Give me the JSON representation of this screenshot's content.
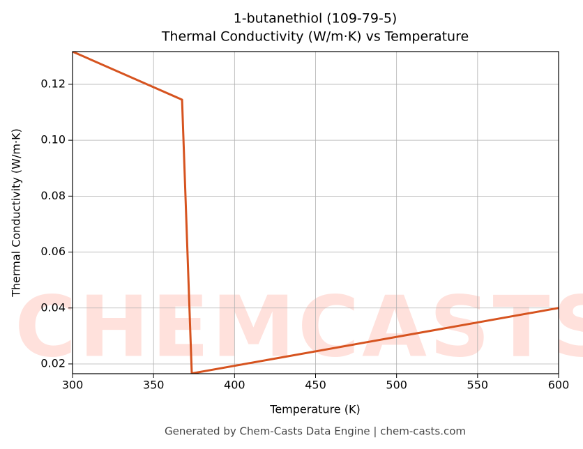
{
  "chart_data": {
    "type": "line",
    "title": "1-butanethiol (109-79-5)",
    "subtitle": "Thermal Conductivity (W/m·K) vs Temperature",
    "x_label": "Temperature (K)",
    "y_label": "Thermal Conductivity (W/m·K)",
    "footer": "Generated by Chem-Casts Data Engine | chem-casts.com",
    "watermark": "CHEMCASTS",
    "x": [
      300,
      367.6,
      373.6,
      600
    ],
    "series": [
      {
        "name": "Thermal Conductivity",
        "color": "#d6531f",
        "values": [
          0.1317,
          0.1145,
          0.0166,
          0.04
        ]
      }
    ],
    "xlim": [
      300,
      600
    ],
    "ylim": [
      0.0165,
      0.1317
    ],
    "xticks": [
      300,
      350,
      400,
      450,
      500,
      550,
      600
    ],
    "yticks": [
      0.02,
      0.04,
      0.06,
      0.08,
      {
        "value": 0.1,
        "label": "0.10"
      },
      0.12
    ],
    "grid": true
  }
}
